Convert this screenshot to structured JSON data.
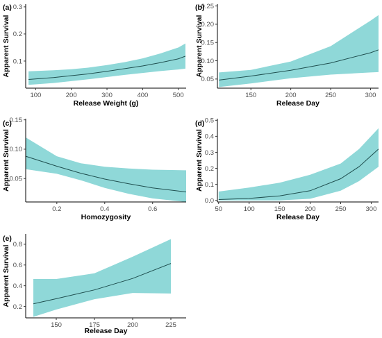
{
  "colors": {
    "ribbon": "#8fd8d8",
    "line": "#1f4f4f",
    "axis": "#000000",
    "tick_text": "#4d4d4d"
  },
  "chart_data": [
    {
      "type": "line",
      "tag": "(a)",
      "xlabel": "Release Weight (g)",
      "ylabel": "Apparent Survival",
      "xlim": [
        72,
        522
      ],
      "ylim": [
        0,
        0.31
      ],
      "xticks": [
        100,
        200,
        300,
        400,
        500
      ],
      "xtick_labels": [
        "100",
        "200",
        "300",
        "400",
        "500"
      ],
      "yticks": [
        0.1,
        0.2,
        0.3
      ],
      "ytick_labels": [
        "0.1",
        "0.2",
        "0.3"
      ],
      "grid": false,
      "legend": "none",
      "series": [
        {
          "x": [
            80,
            150,
            200,
            250,
            300,
            350,
            400,
            450,
            500,
            520
          ],
          "y": [
            0.032,
            0.039,
            0.046,
            0.053,
            0.062,
            0.072,
            0.082,
            0.094,
            0.108,
            0.118
          ],
          "lower": [
            0.012,
            0.019,
            0.026,
            0.033,
            0.041,
            0.049,
            0.056,
            0.063,
            0.069,
            0.072
          ],
          "upper": [
            0.062,
            0.066,
            0.07,
            0.076,
            0.085,
            0.096,
            0.11,
            0.128,
            0.15,
            0.165
          ]
        }
      ]
    },
    {
      "type": "line",
      "tag": "(b)",
      "xlabel": "Release Day",
      "ylabel": "Apparent Survival",
      "xlim": [
        108,
        310
      ],
      "ylim": [
        0.025,
        0.255
      ],
      "xticks": [
        150,
        200,
        250,
        300
      ],
      "xtick_labels": [
        "150",
        "200",
        "250",
        "300"
      ],
      "yticks": [
        0.05,
        0.1,
        0.15,
        0.2,
        0.25
      ],
      "ytick_labels": [
        "0.05",
        "0.10",
        "0.15",
        "0.20",
        "0.25"
      ],
      "grid": false,
      "legend": "none",
      "series": [
        {
          "x": [
            110,
            150,
            200,
            250,
            300,
            310
          ],
          "y": [
            0.047,
            0.058,
            0.074,
            0.094,
            0.122,
            0.13
          ],
          "lower": [
            0.028,
            0.038,
            0.052,
            0.062,
            0.068,
            0.069
          ],
          "upper": [
            0.068,
            0.075,
            0.098,
            0.14,
            0.21,
            0.225
          ]
        }
      ]
    },
    {
      "type": "line",
      "tag": "(c)",
      "xlabel": "Homozygosity",
      "ylabel": "Apparent Survival",
      "xlim": [
        0.07,
        0.74
      ],
      "ylim": [
        0.01,
        0.152
      ],
      "xticks": [
        0.2,
        0.4,
        0.6
      ],
      "xtick_labels": [
        "0.2",
        "0.4",
        "0.6"
      ],
      "yticks": [
        0.05,
        0.1,
        0.15
      ],
      "ytick_labels": [
        "0.05",
        "0.10",
        "0.15"
      ],
      "grid": false,
      "legend": "none",
      "series": [
        {
          "x": [
            0.07,
            0.2,
            0.3,
            0.4,
            0.5,
            0.6,
            0.74
          ],
          "y": [
            0.088,
            0.071,
            0.059,
            0.049,
            0.041,
            0.034,
            0.027
          ],
          "lower": [
            0.066,
            0.058,
            0.047,
            0.034,
            0.024,
            0.016,
            0.01
          ],
          "upper": [
            0.12,
            0.088,
            0.076,
            0.07,
            0.067,
            0.065,
            0.064
          ]
        }
      ]
    },
    {
      "type": "line",
      "tag": "(d)",
      "xlabel": "Release Day",
      "ylabel": "Apparent Survival",
      "xlim": [
        48,
        312
      ],
      "ylim": [
        -0.01,
        0.51
      ],
      "xticks": [
        50,
        100,
        150,
        200,
        250,
        300
      ],
      "xtick_labels": [
        "50",
        "100",
        "150",
        "200",
        "250",
        "300"
      ],
      "yticks": [
        0.0,
        0.1,
        0.2,
        0.3,
        0.4,
        0.5
      ],
      "ytick_labels": [
        "0.0",
        "0.1",
        "0.2",
        "0.3",
        "0.4",
        "0.5"
      ],
      "grid": false,
      "legend": "none",
      "series": [
        {
          "x": [
            50,
            100,
            150,
            200,
            250,
            280,
            312
          ],
          "y": [
            0.005,
            0.012,
            0.028,
            0.06,
            0.135,
            0.21,
            0.32
          ],
          "lower": [
            0.0,
            0.0,
            0.0,
            0.01,
            0.06,
            0.12,
            0.21
          ],
          "upper": [
            0.055,
            0.08,
            0.11,
            0.16,
            0.23,
            0.32,
            0.45
          ]
        }
      ]
    },
    {
      "type": "line",
      "tag": "(e)",
      "xlabel": "Release Day",
      "ylabel": "Apparent Survival",
      "xlim": [
        130,
        235
      ],
      "ylim": [
        0.09,
        0.9
      ],
      "xticks": [
        150,
        175,
        200,
        225
      ],
      "xtick_labels": [
        "150",
        "175",
        "200",
        "225"
      ],
      "yticks": [
        0.2,
        0.4,
        0.6,
        0.8
      ],
      "ytick_labels": [
        "0.2",
        "0.4",
        "0.6",
        "0.8"
      ],
      "grid": false,
      "legend": "none",
      "series": [
        {
          "x": [
            135,
            150,
            175,
            200,
            225
          ],
          "y": [
            0.225,
            0.275,
            0.36,
            0.47,
            0.615
          ],
          "lower": [
            0.1,
            0.17,
            0.27,
            0.33,
            0.325
          ],
          "upper": [
            0.465,
            0.465,
            0.52,
            0.68,
            0.85
          ]
        }
      ]
    }
  ]
}
